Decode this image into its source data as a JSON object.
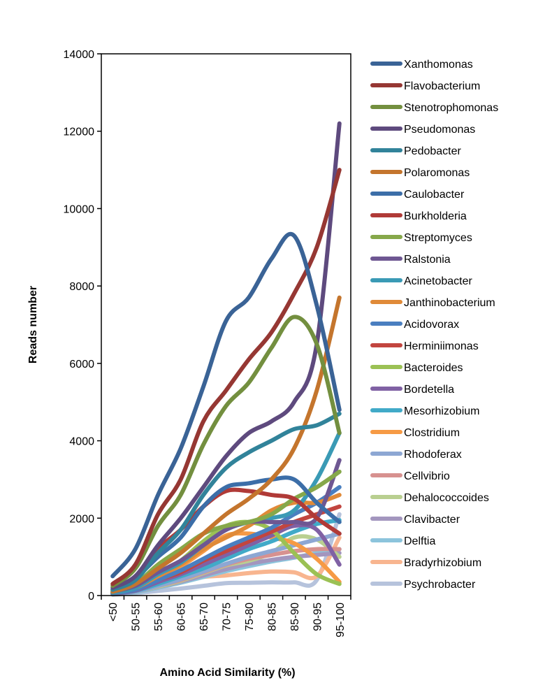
{
  "chart_data": {
    "type": "line",
    "title": "",
    "xlabel": "Amino Acid Similarity (%)",
    "ylabel": "Reads number",
    "categories": [
      "<50",
      "50-55",
      "55-60",
      "60-65",
      "65-70",
      "70-75",
      "75-80",
      "80-85",
      "85-90",
      "90-95",
      "95-100"
    ],
    "ylim": [
      0,
      14000
    ],
    "yticks": [
      0,
      2000,
      4000,
      6000,
      8000,
      10000,
      12000,
      14000
    ],
    "grid": false,
    "legend_position": "right",
    "series": [
      {
        "name": "Xanthomonas",
        "color": "#3a6396",
        "values": [
          500,
          1200,
          2600,
          3800,
          5400,
          7100,
          7700,
          8700,
          9300,
          7500,
          4800
        ]
      },
      {
        "name": "Flavobacterium",
        "color": "#963733",
        "values": [
          300,
          800,
          2100,
          3000,
          4500,
          5300,
          6100,
          6800,
          7800,
          9000,
          11000
        ]
      },
      {
        "name": "Stenotrophomonas",
        "color": "#738f3f",
        "values": [
          250,
          700,
          1800,
          2600,
          3900,
          4900,
          5500,
          6400,
          7200,
          6500,
          4200
        ]
      },
      {
        "name": "Pseudomonas",
        "color": "#5e4a7e",
        "values": [
          200,
          500,
          1300,
          2000,
          2800,
          3600,
          4200,
          4500,
          5000,
          6500,
          12200
        ]
      },
      {
        "name": "Pedobacter",
        "color": "#31839a",
        "values": [
          150,
          400,
          1100,
          1700,
          2600,
          3300,
          3700,
          4000,
          4300,
          4400,
          4700
        ]
      },
      {
        "name": "Polaromonas",
        "color": "#c4752d",
        "values": [
          100,
          300,
          700,
          1100,
          1600,
          2100,
          2500,
          3000,
          3800,
          5300,
          7700
        ]
      },
      {
        "name": "Caulobacter",
        "color": "#3c6ea8",
        "values": [
          150,
          450,
          1000,
          1500,
          2300,
          2800,
          2900,
          3000,
          3000,
          2400,
          1900
        ]
      },
      {
        "name": "Burkholderia",
        "color": "#b03a37",
        "values": [
          150,
          400,
          1200,
          1700,
          2300,
          2700,
          2700,
          2600,
          2500,
          2000,
          1600
        ]
      },
      {
        "name": "Streptomyces",
        "color": "#86a84a",
        "values": [
          100,
          300,
          800,
          1200,
          1600,
          1800,
          1900,
          2100,
          2500,
          2800,
          3200
        ]
      },
      {
        "name": "Ralstonia",
        "color": "#6e5792",
        "values": [
          100,
          250,
          600,
          900,
          1300,
          1700,
          1900,
          1900,
          1900,
          2000,
          3500
        ]
      },
      {
        "name": "Acinetobacter",
        "color": "#3a9ab5",
        "values": [
          80,
          200,
          550,
          850,
          1300,
          1700,
          1900,
          2000,
          2200,
          3000,
          4200
        ]
      },
      {
        "name": "Janthinobacterium",
        "color": "#e08a38",
        "values": [
          80,
          200,
          500,
          800,
          1200,
          1500,
          1800,
          2200,
          2400,
          2400,
          2600
        ]
      },
      {
        "name": "Acidovorax",
        "color": "#4a7fc0",
        "values": [
          60,
          150,
          400,
          650,
          950,
          1250,
          1500,
          1750,
          2100,
          2400,
          2800
        ]
      },
      {
        "name": "Herminiimonas",
        "color": "#c2453f",
        "values": [
          60,
          150,
          400,
          600,
          900,
          1150,
          1400,
          1650,
          1900,
          2100,
          2300
        ]
      },
      {
        "name": "Bacteroides",
        "color": "#9bc154",
        "values": [
          60,
          160,
          500,
          900,
          1400,
          1800,
          1900,
          1700,
          1100,
          550,
          300
        ]
      },
      {
        "name": "Bordetella",
        "color": "#8061a4",
        "values": [
          50,
          130,
          350,
          550,
          800,
          1050,
          1300,
          1550,
          1800,
          1700,
          800
        ]
      },
      {
        "name": "Mesorhizobium",
        "color": "#41aac8",
        "values": [
          50,
          120,
          300,
          500,
          700,
          950,
          1200,
          1400,
          1650,
          1850,
          1950
        ]
      },
      {
        "name": "Clostridium",
        "color": "#f69a45",
        "values": [
          50,
          150,
          450,
          750,
          1150,
          1550,
          1600,
          1500,
          1350,
          950,
          350
        ]
      },
      {
        "name": "Rhodoferax",
        "color": "#8da7d3",
        "values": [
          40,
          100,
          250,
          420,
          620,
          820,
          1000,
          1150,
          1300,
          1450,
          1600
        ]
      },
      {
        "name": "Cellvibrio",
        "color": "#d7918f",
        "values": [
          40,
          100,
          250,
          400,
          600,
          800,
          950,
          1050,
          1150,
          1200,
          1200
        ]
      },
      {
        "name": "Dehalococcoides",
        "color": "#b9cf90",
        "values": [
          40,
          100,
          230,
          380,
          580,
          780,
          900,
          1100,
          1500,
          1450,
          1000
        ]
      },
      {
        "name": "Clavibacter",
        "color": "#a396be",
        "values": [
          40,
          100,
          220,
          360,
          520,
          680,
          820,
          920,
          1000,
          1050,
          1100
        ]
      },
      {
        "name": "Delftia",
        "color": "#8cc4dc",
        "values": [
          30,
          80,
          200,
          330,
          480,
          630,
          760,
          880,
          980,
          1100,
          1200
        ]
      },
      {
        "name": "Bradyrhizobium",
        "color": "#f8b58f",
        "values": [
          30,
          80,
          250,
          380,
          480,
          520,
          580,
          620,
          600,
          500,
          1500
        ]
      },
      {
        "name": "Psychrobacter",
        "color": "#b6c3dc",
        "values": [
          20,
          60,
          120,
          180,
          250,
          320,
          330,
          340,
          340,
          400,
          2100
        ]
      }
    ]
  }
}
